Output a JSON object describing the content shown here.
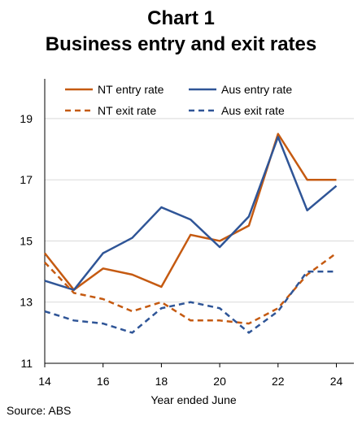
{
  "title_line1": "Chart 1",
  "title_line2": "Business entry and exit rates",
  "source": "Source: ABS",
  "chart_data": {
    "type": "line",
    "title": "Business entry and exit rates",
    "xlabel": "Year ended June",
    "ylabel": "",
    "xlim": [
      14,
      24.6
    ],
    "ylim": [
      11,
      20.3
    ],
    "xticks": [
      "14",
      "16",
      "18",
      "20",
      "22",
      "24"
    ],
    "yticks": [
      "11",
      "13",
      "15",
      "17",
      "19"
    ],
    "grid": true,
    "legend": "top",
    "x": [
      14,
      15,
      16,
      17,
      18,
      19,
      20,
      21,
      22,
      23,
      24
    ],
    "series": [
      {
        "name": "NT entry rate",
        "color": "#C55A11",
        "dash": "solid",
        "values": [
          14.6,
          13.4,
          14.1,
          13.9,
          13.5,
          15.2,
          15.0,
          15.5,
          18.5,
          17.0,
          17.0
        ]
      },
      {
        "name": "Aus entry rate",
        "color": "#2F5597",
        "dash": "solid",
        "values": [
          13.7,
          13.4,
          14.6,
          15.1,
          16.1,
          15.7,
          14.8,
          15.8,
          18.4,
          16.0,
          16.8
        ]
      },
      {
        "name": "NT exit rate",
        "color": "#C55A11",
        "dash": "dashed",
        "values": [
          14.3,
          13.3,
          13.1,
          12.7,
          13.0,
          12.4,
          12.4,
          12.3,
          12.8,
          13.9,
          14.6
        ]
      },
      {
        "name": "Aus exit rate",
        "color": "#2F5597",
        "dash": "dashed",
        "values": [
          12.7,
          12.4,
          12.3,
          12.0,
          12.8,
          13.0,
          12.8,
          12.0,
          12.7,
          14.0,
          14.0
        ]
      }
    ]
  }
}
